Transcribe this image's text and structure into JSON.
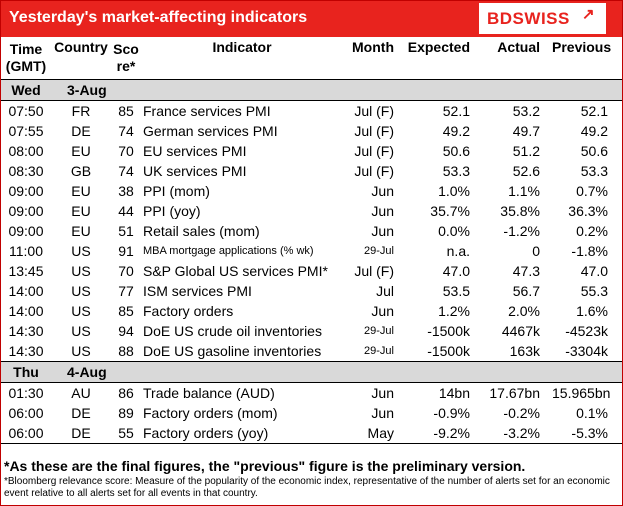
{
  "title": "Yesterday's market-affecting indicators",
  "logo": {
    "text": "BDSWISS",
    "mark": "↗"
  },
  "columns": {
    "time": "Time (GMT)",
    "country": "Country",
    "score": "Score*",
    "indicator": "Indicator",
    "month": "Month",
    "expected": "Expected",
    "actual": "Actual",
    "previous": "Previous"
  },
  "days": [
    {
      "day": "Wed",
      "date": "3-Aug"
    },
    {
      "day": "Thu",
      "date": "4-Aug"
    }
  ],
  "rows_wed": [
    {
      "time": "07:50",
      "country": "FR",
      "score": "85",
      "indicator": "France services PMI",
      "month": "Jul (F)",
      "expected": "52.1",
      "actual": "53.2",
      "previous": "52.1"
    },
    {
      "time": "07:55",
      "country": "DE",
      "score": "74",
      "indicator": "German services PMI",
      "month": "Jul (F)",
      "expected": "49.2",
      "actual": "49.7",
      "previous": "49.2"
    },
    {
      "time": "08:00",
      "country": "EU",
      "score": "70",
      "indicator": "EU services PMI",
      "month": "Jul (F)",
      "expected": "50.6",
      "actual": "51.2",
      "previous": "50.6"
    },
    {
      "time": "08:30",
      "country": "GB",
      "score": "74",
      "indicator": "UK services PMI",
      "month": "Jul (F)",
      "expected": "53.3",
      "actual": "52.6",
      "previous": "53.3"
    },
    {
      "time": "09:00",
      "country": "EU",
      "score": "38",
      "indicator": "PPI (mom)",
      "month": "Jun",
      "expected": "1.0%",
      "actual": "1.1%",
      "previous": "0.7%"
    },
    {
      "time": "09:00",
      "country": "EU",
      "score": "44",
      "indicator": "PPI (yoy)",
      "month": "Jun",
      "expected": "35.7%",
      "actual": "35.8%",
      "previous": "36.3%"
    },
    {
      "time": "09:00",
      "country": "EU",
      "score": "51",
      "indicator": "Retail sales (mom)",
      "month": "Jun",
      "expected": "0.0%",
      "actual": "-1.2%",
      "previous": "0.2%"
    },
    {
      "time": "11:00",
      "country": "US",
      "score": "91",
      "indicator": "MBA mortgage applications (% wk)",
      "month": "29-Jul",
      "expected": "n.a.",
      "actual": "0",
      "previous": "-1.8%",
      "small": true
    },
    {
      "time": "13:45",
      "country": "US",
      "score": "70",
      "indicator": "S&P Global US services PMI*",
      "month": "Jul (F)",
      "expected": "47.0",
      "actual": "47.3",
      "previous": "47.0"
    },
    {
      "time": "14:00",
      "country": "US",
      "score": "77",
      "indicator": "ISM services PMI",
      "month": "Jul",
      "expected": "53.5",
      "actual": "56.7",
      "previous": "55.3"
    },
    {
      "time": "14:00",
      "country": "US",
      "score": "85",
      "indicator": "Factory orders",
      "month": "Jun",
      "expected": "1.2%",
      "actual": "2.0%",
      "previous": "1.6%"
    },
    {
      "time": "14:30",
      "country": "US",
      "score": "94",
      "indicator": "DoE US crude oil inventories",
      "month": "29-Jul",
      "expected": "-1500k",
      "actual": "4467k",
      "previous": "-4523k",
      "smallmonth": true
    },
    {
      "time": "14:30",
      "country": "US",
      "score": "88",
      "indicator": "DoE US gasoline inventories",
      "month": "29-Jul",
      "expected": "-1500k",
      "actual": "163k",
      "previous": "-3304k",
      "smallmonth": true
    }
  ],
  "rows_thu": [
    {
      "time": "01:30",
      "country": "AU",
      "score": "86",
      "indicator": "Trade balance (AUD)",
      "month": "Jun",
      "expected": "14bn",
      "actual": "17.67bn",
      "previous": "15.965bn"
    },
    {
      "time": "06:00",
      "country": "DE",
      "score": "89",
      "indicator": "Factory orders (mom)",
      "month": "Jun",
      "expected": "-0.9%",
      "actual": "-0.2%",
      "previous": "0.1%"
    },
    {
      "time": "06:00",
      "country": "DE",
      "score": "55",
      "indicator": "Factory orders (yoy)",
      "month": "May",
      "expected": "-9.2%",
      "actual": "-3.2%",
      "previous": "-5.3%"
    }
  ],
  "notes": {
    "final": "*As these are the final figures, the \"previous\" figure is the preliminary version.",
    "bloomberg": "*Bloomberg relevance score:  Measure of the popularity of the economic index, representative of the number of alerts set for an economic event relative to all alerts set for all events in that country."
  },
  "colors": {
    "brand": "#e8231e",
    "day_row": "#d9d9d9"
  }
}
